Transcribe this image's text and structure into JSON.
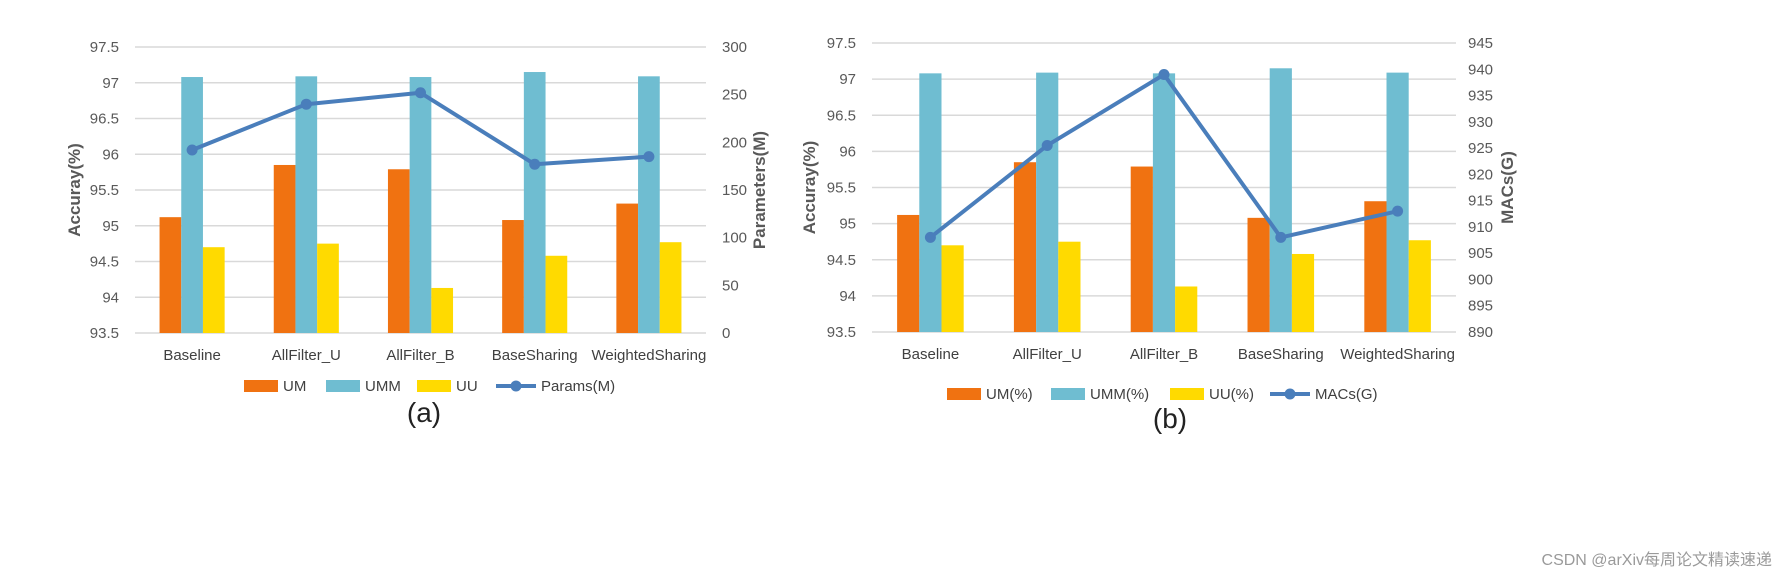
{
  "chart_data": [
    {
      "type": "bar",
      "panel_label": "(a)",
      "categories": [
        "Baseline",
        "AllFilter_U",
        "AllFilter_B",
        "BaseSharing",
        "WeightedSharing"
      ],
      "series": [
        {
          "name": "UM",
          "values": [
            95.12,
            95.85,
            95.79,
            95.08,
            95.31
          ],
          "color": "#F07211"
        },
        {
          "name": "UMM",
          "values": [
            97.08,
            97.09,
            97.08,
            97.15,
            97.09
          ],
          "color": "#6FBDD1"
        },
        {
          "name": "UU",
          "values": [
            94.7,
            94.75,
            94.13,
            94.58,
            94.77
          ],
          "color": "#FFDA00"
        }
      ],
      "line": {
        "name": "Params(M)",
        "values": [
          192,
          240,
          252,
          177,
          185
        ],
        "color": "#4A7EBB"
      },
      "ylabel": "Accuray(%)",
      "y2label": "Parameters(M)",
      "ylim": [
        93.5,
        97.5
      ],
      "y2lim": [
        0,
        300
      ],
      "yticks": [
        "93.5",
        "94",
        "94.5",
        "95",
        "95.5",
        "96",
        "96.5",
        "97",
        "97.5"
      ],
      "y2ticks": [
        "0",
        "50",
        "100",
        "150",
        "200",
        "250",
        "300"
      ],
      "legend_position": "bottom"
    },
    {
      "type": "bar",
      "panel_label": "(b)",
      "categories": [
        "Baseline",
        "AllFilter_U",
        "AllFilter_B",
        "BaseSharing",
        "WeightedSharing"
      ],
      "series": [
        {
          "name": "UM(%)",
          "values": [
            95.12,
            95.85,
            95.79,
            95.08,
            95.31
          ],
          "color": "#F07211"
        },
        {
          "name": "UMM(%)",
          "values": [
            97.08,
            97.09,
            97.08,
            97.15,
            97.09
          ],
          "color": "#6FBDD1"
        },
        {
          "name": "UU(%)",
          "values": [
            94.7,
            94.75,
            94.13,
            94.58,
            94.77
          ],
          "color": "#FFDA00"
        }
      ],
      "line": {
        "name": "MACs(G)",
        "values": [
          908,
          925.5,
          939,
          908,
          913
        ],
        "color": "#4A7EBB"
      },
      "ylabel": "Accuray(%)",
      "y2label": "MACs(G)",
      "ylim": [
        93.5,
        97.5
      ],
      "y2lim": [
        890,
        945
      ],
      "yticks": [
        "93.5",
        "94",
        "94.5",
        "95",
        "95.5",
        "96",
        "96.5",
        "97",
        "97.5"
      ],
      "y2ticks": [
        "890",
        "895",
        "900",
        "905",
        "910",
        "915",
        "920",
        "925",
        "930",
        "935",
        "940",
        "945"
      ],
      "legend_position": "bottom"
    }
  ],
  "watermark": "CSDN @arXiv每周论文精读速递"
}
